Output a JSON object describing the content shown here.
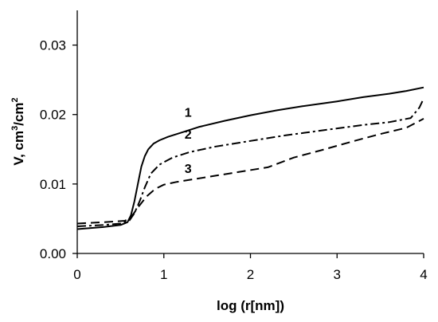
{
  "chart_data": {
    "type": "line",
    "title": "",
    "xlabel": "log (r[nm])",
    "ylabel": {
      "prefix": "V, cm",
      "sup1": "3",
      "mid": "/cm",
      "sup2": "2"
    },
    "xlim": [
      0,
      4
    ],
    "ylim": [
      0,
      0.035
    ],
    "xticks": [
      0,
      1,
      2,
      3,
      4
    ],
    "xtick_labels": [
      "0",
      "1",
      "2",
      "3",
      "4"
    ],
    "yticks": [
      0,
      0.01,
      0.02,
      0.03
    ],
    "ytick_labels": [
      "0.00",
      "0.01",
      "0.02",
      "0.03"
    ],
    "grid": false,
    "legend": "none",
    "series": [
      {
        "name": "1",
        "dash": "solid",
        "x": [
          0,
          0.3,
          0.5,
          0.58,
          0.62,
          0.66,
          0.7,
          0.74,
          0.78,
          0.82,
          0.88,
          0.95,
          1.05,
          1.2,
          1.4,
          1.7,
          2.0,
          2.3,
          2.6,
          3.0,
          3.3,
          3.6,
          3.8,
          4.0
        ],
        "y": [
          0.0035,
          0.0038,
          0.0041,
          0.0045,
          0.0055,
          0.0075,
          0.01,
          0.0125,
          0.014,
          0.015,
          0.0158,
          0.0163,
          0.0168,
          0.0174,
          0.0182,
          0.0191,
          0.0199,
          0.0206,
          0.0212,
          0.0219,
          0.0225,
          0.023,
          0.0234,
          0.0239
        ]
      },
      {
        "name": "2",
        "dash": "dash-dot",
        "x": [
          0,
          0.3,
          0.5,
          0.6,
          0.66,
          0.72,
          0.78,
          0.85,
          0.95,
          1.1,
          1.3,
          1.6,
          2.0,
          2.4,
          2.7,
          3.0,
          3.3,
          3.6,
          3.85,
          3.95,
          4.0
        ],
        "y": [
          0.0039,
          0.0041,
          0.0043,
          0.0047,
          0.0058,
          0.0075,
          0.0095,
          0.0115,
          0.0128,
          0.0138,
          0.0146,
          0.0154,
          0.0162,
          0.017,
          0.0175,
          0.018,
          0.0185,
          0.0189,
          0.0195,
          0.021,
          0.0223
        ]
      },
      {
        "name": "3",
        "dash": "dash",
        "x": [
          0,
          0.3,
          0.55,
          0.62,
          0.7,
          0.8,
          0.9,
          1.0,
          1.15,
          1.4,
          1.8,
          2.2,
          2.5,
          2.8,
          3.2,
          3.5,
          3.8,
          4.0
        ],
        "y": [
          0.0043,
          0.0045,
          0.0047,
          0.0052,
          0.0066,
          0.0082,
          0.0093,
          0.0099,
          0.0103,
          0.0108,
          0.0116,
          0.0124,
          0.0138,
          0.0148,
          0.0162,
          0.0172,
          0.0181,
          0.0194
        ]
      }
    ],
    "annotations": [
      {
        "text": "1",
        "x": 1.28,
        "y": 0.0197
      },
      {
        "text": "2",
        "x": 1.28,
        "y": 0.0165
      },
      {
        "text": "3",
        "x": 1.28,
        "y": 0.0116
      }
    ]
  }
}
